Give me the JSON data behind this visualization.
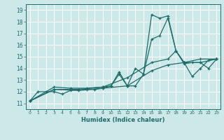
{
  "xlabel": "Humidex (Indice chaleur)",
  "bg_color": "#cde8e8",
  "grid_color": "#b0d4d4",
  "line_color": "#1e6b6b",
  "xlim": [
    -0.5,
    23.5
  ],
  "ylim": [
    10.5,
    19.5
  ],
  "xticks": [
    0,
    1,
    2,
    3,
    4,
    5,
    6,
    7,
    8,
    9,
    10,
    11,
    12,
    13,
    14,
    15,
    16,
    17,
    18,
    19,
    20,
    21,
    22,
    23
  ],
  "yticks": [
    11,
    12,
    13,
    14,
    15,
    16,
    17,
    18,
    19
  ],
  "series": [
    [
      [
        0,
        11.2
      ],
      [
        1,
        12.0
      ],
      [
        2,
        12.0
      ],
      [
        3,
        12.0
      ],
      [
        4,
        11.8
      ],
      [
        5,
        12.1
      ],
      [
        6,
        12.2
      ],
      [
        7,
        12.2
      ],
      [
        8,
        12.2
      ],
      [
        9,
        12.3
      ],
      [
        10,
        12.5
      ],
      [
        11,
        13.7
      ],
      [
        12,
        12.5
      ],
      [
        13,
        12.5
      ],
      [
        14,
        13.5
      ],
      [
        15,
        18.6
      ],
      [
        16,
        18.3
      ],
      [
        17,
        18.5
      ],
      [
        18,
        15.5
      ],
      [
        19,
        14.5
      ],
      [
        20,
        13.3
      ],
      [
        21,
        14.0
      ],
      [
        22,
        14.7
      ],
      [
        23,
        14.8
      ]
    ],
    [
      [
        0,
        11.2
      ],
      [
        3,
        12.4
      ],
      [
        5,
        12.3
      ],
      [
        7,
        12.3
      ],
      [
        9,
        12.4
      ],
      [
        10,
        12.5
      ],
      [
        11,
        13.5
      ],
      [
        12,
        12.5
      ],
      [
        13,
        14.0
      ],
      [
        14,
        13.5
      ],
      [
        15,
        16.5
      ],
      [
        16,
        16.8
      ],
      [
        17,
        18.3
      ],
      [
        18,
        15.5
      ],
      [
        19,
        14.4
      ],
      [
        20,
        14.5
      ],
      [
        21,
        14.5
      ],
      [
        22,
        14.0
      ],
      [
        23,
        14.8
      ]
    ],
    [
      [
        0,
        11.2
      ],
      [
        3,
        12.2
      ],
      [
        6,
        12.2
      ],
      [
        9,
        12.4
      ],
      [
        12,
        13.2
      ],
      [
        15,
        14.5
      ],
      [
        17,
        14.8
      ],
      [
        18,
        15.5
      ],
      [
        19,
        14.5
      ],
      [
        21,
        14.5
      ],
      [
        23,
        14.8
      ]
    ],
    [
      [
        0,
        11.2
      ],
      [
        3,
        12.2
      ],
      [
        6,
        12.1
      ],
      [
        9,
        12.3
      ],
      [
        12,
        12.5
      ],
      [
        15,
        13.8
      ],
      [
        17,
        14.3
      ],
      [
        19,
        14.5
      ],
      [
        21,
        14.8
      ],
      [
        23,
        14.8
      ]
    ]
  ]
}
